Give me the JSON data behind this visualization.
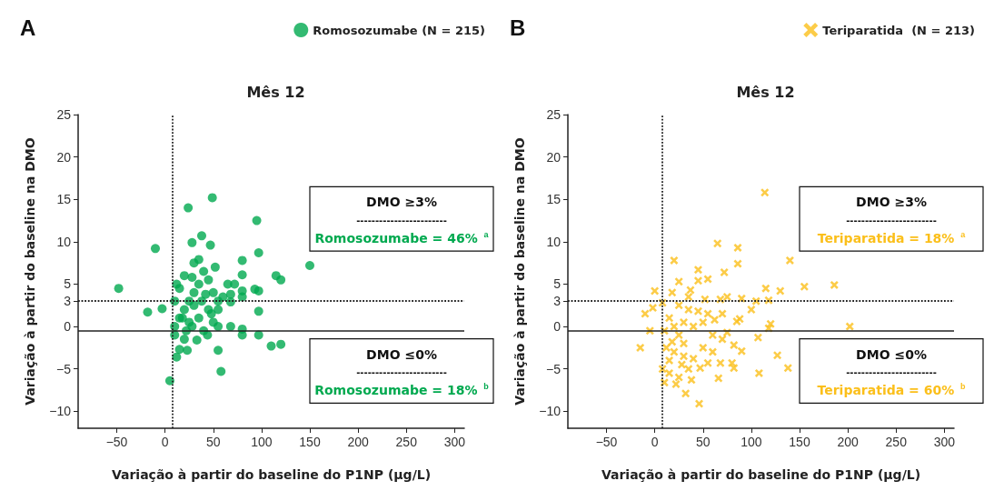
{
  "chart_data": [
    {
      "type": "scatter",
      "title": "Mês 12",
      "xlabel": "Variação à partir do baseline do P1NP (µg/L)",
      "ylabel": "Variação à partir do baseline na DMO",
      "annotations": [
        "A",
        "DMO ≥3%",
        "------------------------",
        "Romosozumabe = 46% $^{a}$",
        "DMO ≤0%",
        "------------------------",
        "Romosozumabe = 18% $^{b}$"
      ],
      "xlim": [
        -90,
        310
      ],
      "xticks": [
        -50,
        0,
        50,
        100,
        150,
        200,
        250,
        300
      ],
      "ylim": [
        -12,
        25
      ],
      "yticks": [
        -10,
        -5,
        0,
        3,
        5,
        10,
        15,
        20,
        25
      ],
      "grid": false,
      "legend": "top right",
      "marker": "circle",
      "ref_lines": [
        {
          "axis": "x",
          "value": 8,
          "line_style": "dotted"
        },
        {
          "axis": "y",
          "value": 3,
          "line_style": "dotted"
        },
        {
          "axis": "y",
          "value": -0.5,
          "line_style": "solid"
        }
      ],
      "series": [
        {
          "name": "Romosozumabe (N = 215)",
          "color": "#00a94f",
          "x": [
            -48,
            -18,
            -10,
            -3,
            5,
            12,
            15,
            23,
            24,
            28,
            33,
            38,
            47,
            49,
            55,
            58,
            52,
            68,
            80,
            80,
            80,
            80,
            80,
            80,
            95,
            97,
            97,
            97,
            93,
            97,
            110,
            115,
            120,
            120,
            150,
            65,
            72,
            68,
            68,
            44,
            40,
            28,
            20,
            10,
            15,
            20,
            25,
            30,
            35,
            40,
            45,
            50,
            55,
            45,
            35,
            25,
            15,
            20,
            30,
            35,
            10,
            50,
            55,
            60,
            12,
            18,
            22,
            38,
            42,
            28,
            48,
            55,
            10,
            30
          ],
          "values": [
            4.5,
            1.7,
            9.2,
            2.1,
            -6.4,
            -3.6,
            -2.7,
            -2.8,
            14,
            9.9,
            -1.6,
            10.7,
            9.6,
            15.2,
            -2.8,
            -5.3,
            7,
            0,
            7.8,
            -0.3,
            -1,
            6.1,
            4.2,
            3.5,
            12.5,
            8.7,
            1.8,
            -1,
            4.4,
            4.2,
            -2.3,
            6,
            5.5,
            -2.1,
            7.2,
            5,
            5,
            3.8,
            2.9,
            -1,
            -0.5,
            0,
            -1.5,
            -1,
            1,
            2,
            3,
            4,
            5,
            6.5,
            5.5,
            4,
            3,
            2,
            1,
            0.5,
            4.5,
            6,
            7.5,
            7.9,
            3,
            0.5,
            2,
            3.5,
            5,
            1,
            -0.5,
            3,
            3.8,
            5.8,
            1.5,
            0,
            0,
            2.5
          ]
        }
      ]
    },
    {
      "type": "scatter",
      "title": "Mês 12",
      "xlabel": "Variação à partir do baseline do P1NP (µg/L)",
      "ylabel": "Variação à partir do baseline na DMO",
      "annotations": [
        "B",
        "DMO ≥3%",
        "------------------------",
        "Teriparatida = 18% $^{a}$",
        "DMO ≤0%",
        "------------------------",
        "Teriparatida = 60% $^{b}$"
      ],
      "xlim": [
        -90,
        310
      ],
      "xticks": [
        -50,
        0,
        50,
        100,
        150,
        200,
        250,
        300
      ],
      "ylim": [
        -12,
        25
      ],
      "yticks": [
        -10,
        -5,
        0,
        3,
        5,
        10,
        15,
        20,
        25
      ],
      "grid": false,
      "legend": "top right",
      "marker": "cross",
      "ref_lines": [
        {
          "axis": "x",
          "value": 8,
          "line_style": "dotted"
        },
        {
          "axis": "y",
          "value": 3,
          "line_style": "dotted"
        },
        {
          "axis": "y",
          "value": -0.5,
          "line_style": "solid"
        }
      ],
      "series": [
        {
          "name": "Teriparatida  (N = 213)",
          "color": "#fbbf1a",
          "x": [
            -15,
            -10,
            -5,
            0,
            -2,
            8,
            20,
            18,
            25,
            37,
            35,
            45,
            45,
            55,
            65,
            72,
            86,
            86,
            68,
            75,
            90,
            105,
            100,
            115,
            118,
            130,
            155,
            186,
            114,
            140,
            120,
            118,
            202,
            107,
            127,
            138,
            108,
            90,
            82,
            80,
            82,
            68,
            66,
            46,
            32,
            38,
            22,
            25,
            10,
            8,
            15,
            20,
            30,
            40,
            47,
            55,
            50,
            60,
            70,
            75,
            85,
            88,
            62,
            55,
            45,
            35,
            25,
            15,
            20,
            10,
            25,
            30,
            12,
            18,
            40,
            50,
            60,
            35,
            28,
            15,
            70,
            52,
            30
          ],
          "values": [
            -2.5,
            1.5,
            -0.5,
            4.2,
            2.2,
            2.8,
            7.8,
            4,
            5.3,
            4.3,
            3.5,
            6.7,
            5.4,
            5.6,
            9.8,
            6.4,
            9.3,
            7.4,
            3.2,
            3.5,
            3.3,
            3,
            2,
            4.5,
            3.1,
            4.2,
            4.7,
            4.9,
            15.8,
            7.8,
            0.3,
            -0.2,
            0,
            -1.3,
            -3.4,
            -4.9,
            -5.5,
            -2.9,
            -2.2,
            -4.3,
            -4.9,
            -4.3,
            -6.1,
            -9.1,
            -7.9,
            -6.3,
            -6.8,
            -6,
            -6.6,
            -5,
            -4,
            -3,
            -3.5,
            -3.8,
            -4.9,
            -4.3,
            -2.5,
            -1,
            -1.5,
            -0.7,
            0.6,
            0.9,
            0.8,
            1.5,
            1.8,
            2,
            2.5,
            1,
            0,
            -0.5,
            -1,
            -2,
            -2.5,
            -1.8,
            0,
            0.5,
            -3,
            -5,
            -4.5,
            -5.5,
            1.5,
            3.2,
            0.5
          ]
        }
      ]
    }
  ]
}
